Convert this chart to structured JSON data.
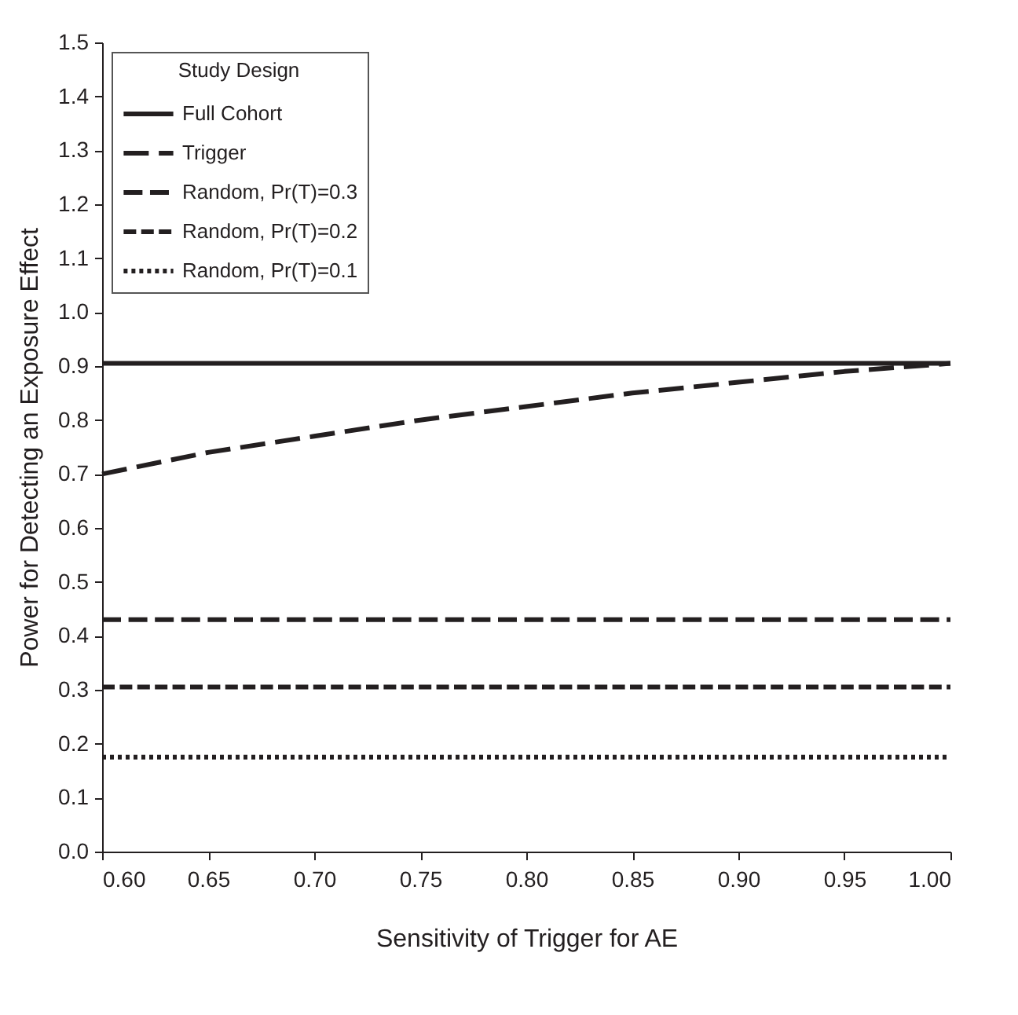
{
  "chart_data": {
    "type": "line",
    "xlabel": "Sensitivity of Trigger for AE",
    "ylabel": "Power for Detecting an Exposure Effect",
    "legend_title": "Study Design",
    "legend": "top left",
    "grid": false,
    "marker": "none",
    "x": [
      0.6,
      0.65,
      0.7,
      0.75,
      0.8,
      0.85,
      0.9,
      0.95,
      1.0
    ],
    "xlim": [
      0.6,
      1.0
    ],
    "ylim": [
      0,
      1.5
    ],
    "xticks": [
      {
        "value": 0.6,
        "label": "0.60"
      },
      {
        "value": 0.65,
        "label": "0.65"
      },
      {
        "value": 0.7,
        "label": "0.70"
      },
      {
        "value": 0.75,
        "label": "0.75"
      },
      {
        "value": 0.8,
        "label": "0.80"
      },
      {
        "value": 0.85,
        "label": "0.85"
      },
      {
        "value": 0.9,
        "label": "0.90"
      },
      {
        "value": 0.95,
        "label": "0.95"
      },
      {
        "value": 1.0,
        "label": "1.00"
      }
    ],
    "yticks": [
      {
        "value": 0,
        "label": "0.0"
      },
      {
        "value": 0.1,
        "label": "0.1"
      },
      {
        "value": 0.2,
        "label": "0.2"
      },
      {
        "value": 0.3,
        "label": "0.3"
      },
      {
        "value": 0.4,
        "label": "0.4"
      },
      {
        "value": 0.5,
        "label": "0.5"
      },
      {
        "value": 0.6,
        "label": "0.6"
      },
      {
        "value": 0.7,
        "label": "0.7"
      },
      {
        "value": 0.8,
        "label": "0.8"
      },
      {
        "value": 0.9,
        "label": "0.9"
      },
      {
        "value": 1,
        "label": "1.0"
      },
      {
        "value": 1.1,
        "label": "1.1"
      },
      {
        "value": 1.2,
        "label": "1.2"
      },
      {
        "value": 1.3,
        "label": "1.3"
      },
      {
        "value": 1.4,
        "label": "1.4"
      },
      {
        "value": 1.5,
        "label": "1.5"
      }
    ],
    "series": [
      {
        "name": "Full Cohort",
        "color": "#231f20",
        "line_style": "solid",
        "values": [
          0.905,
          0.905,
          0.905,
          0.905,
          0.905,
          0.905,
          0.905,
          0.905,
          0.905
        ]
      },
      {
        "name": "Trigger",
        "color": "#231f20",
        "line_style": "dashed",
        "values": [
          0.7,
          0.74,
          0.77,
          0.8,
          0.825,
          0.85,
          0.87,
          0.89,
          0.905
        ]
      },
      {
        "name": "Random, Pr(T)=0.3",
        "color": "#231f20",
        "line_style": "dashed",
        "values": [
          0.43,
          0.43,
          0.43,
          0.43,
          0.43,
          0.43,
          0.43,
          0.43,
          0.43
        ]
      },
      {
        "name": "Random, Pr(T)=0.2",
        "color": "#231f20",
        "line_style": "dashed",
        "values": [
          0.305,
          0.305,
          0.305,
          0.305,
          0.305,
          0.305,
          0.305,
          0.305,
          0.305
        ]
      },
      {
        "name": "Random, Pr(T)=0.1",
        "color": "#231f20",
        "line_style": "dotted",
        "values": [
          0.175,
          0.175,
          0.175,
          0.175,
          0.175,
          0.175,
          0.175,
          0.175,
          0.175
        ]
      }
    ]
  }
}
